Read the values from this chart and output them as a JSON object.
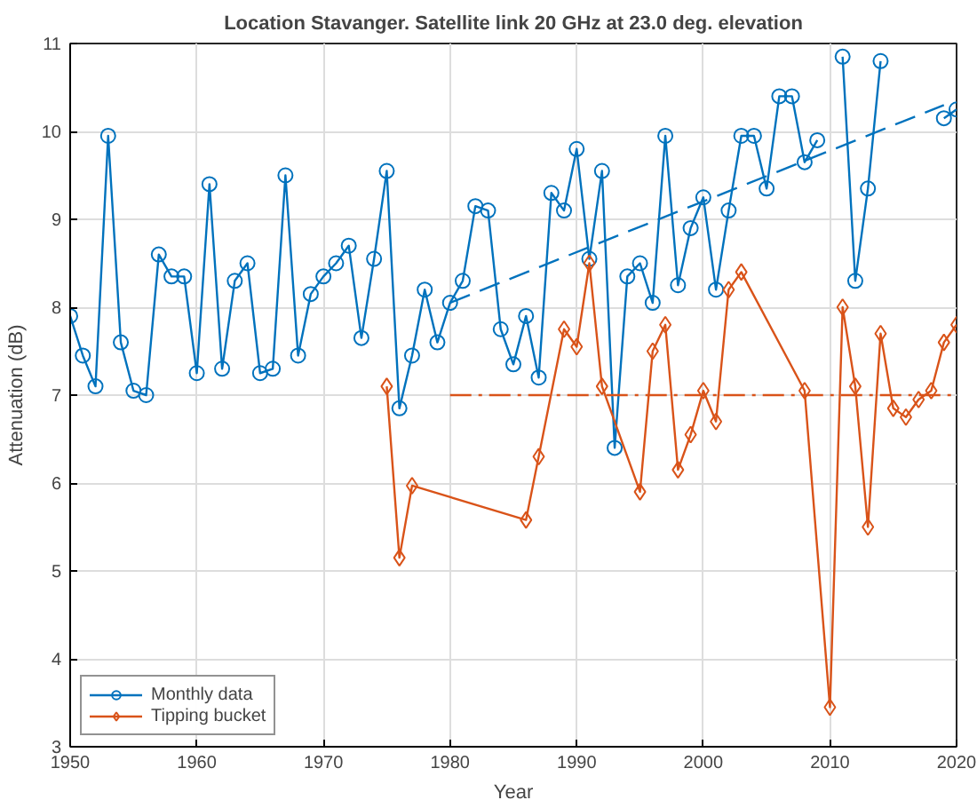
{
  "chart_data": {
    "type": "line",
    "title": "Location Stavanger. Satellite link 20 GHz at 23.0 deg. elevation",
    "xlabel": "Year",
    "ylabel": "Attenuation (dB)",
    "xlim": [
      1950,
      2020
    ],
    "xticks": [
      1950,
      1960,
      1970,
      1980,
      1990,
      2000,
      2010,
      2020
    ],
    "ylim": [
      3,
      11
    ],
    "yticks": [
      3,
      4,
      5,
      6,
      7,
      8,
      9,
      10,
      11
    ],
    "grid": true,
    "legend": "bottom left",
    "series": [
      {
        "name": "Monthly data",
        "color": "#0072bd",
        "marker": "circle",
        "line_style": "solid",
        "x": [
          1950,
          1951,
          1952,
          1953,
          1954,
          1955,
          1956,
          1957,
          1958,
          1959,
          1960,
          1961,
          1962,
          1963,
          1964,
          1965,
          1966,
          1967,
          1968,
          1969,
          1970,
          1971,
          1972,
          1973,
          1974,
          1975,
          1976,
          1977,
          1978,
          1979,
          1980,
          1981,
          1982,
          1983,
          1984,
          1985,
          1986,
          1987,
          1988,
          1989,
          1990,
          1991,
          1992,
          1993,
          1994,
          1995,
          1996,
          1997,
          1998,
          1999,
          2000,
          2001,
          2002,
          2003,
          2004,
          2005,
          2006,
          2007,
          2008,
          2009,
          2010,
          2011,
          2012,
          2013,
          2014,
          2015,
          2016,
          2017,
          2018,
          2019,
          2020
        ],
        "values": [
          7.9,
          7.45,
          7.1,
          9.95,
          7.6,
          7.05,
          7.0,
          8.6,
          8.35,
          8.35,
          7.25,
          9.4,
          7.3,
          8.3,
          8.5,
          7.25,
          7.3,
          9.5,
          7.45,
          8.15,
          8.35,
          8.5,
          8.7,
          7.65,
          8.55,
          9.55,
          6.85,
          7.45,
          8.2,
          7.6,
          8.05,
          8.3,
          9.15,
          9.1,
          7.75,
          7.35,
          7.9,
          7.2,
          9.3,
          9.1,
          9.8,
          8.55,
          9.55,
          6.4,
          8.35,
          8.5,
          8.05,
          9.95,
          8.25,
          8.9,
          9.25,
          8.2,
          9.1,
          9.95,
          9.95,
          9.35,
          10.4,
          10.4,
          9.65,
          9.9,
          null,
          10.85,
          8.3,
          9.35,
          10.8,
          null,
          null,
          null,
          null,
          10.15,
          10.25
        ]
      },
      {
        "name": "Tipping bucket",
        "color": "#d95319",
        "marker": "diamond",
        "line_style": "solid",
        "x": [
          1975,
          1976,
          1977,
          1986,
          1987,
          1989,
          1990,
          1991,
          1992,
          1995,
          1996,
          1997,
          1998,
          1999,
          2000,
          2001,
          2002,
          2003,
          2008,
          2010,
          2011,
          2012,
          2013,
          2014,
          2015,
          2016,
          2017,
          2018,
          2019,
          2020
        ],
        "values": [
          7.1,
          5.15,
          5.97,
          5.58,
          6.3,
          7.75,
          7.55,
          8.5,
          7.1,
          5.9,
          7.5,
          7.8,
          6.15,
          6.55,
          7.05,
          6.7,
          8.2,
          8.4,
          7.05,
          3.45,
          8.0,
          7.1,
          5.5,
          7.7,
          6.85,
          6.75,
          6.95,
          7.05,
          7.6,
          7.8
        ]
      },
      {
        "color": "#0072bd",
        "marker": "none",
        "line_style": "dashed",
        "x": [
          1980,
          2019
        ],
        "values": [
          8.05,
          10.3
        ]
      },
      {
        "color": "#d95319",
        "marker": "none",
        "line_style": "dashdot",
        "x": [
          1980,
          2020
        ],
        "values": [
          7.0,
          7.0
        ]
      }
    ]
  }
}
